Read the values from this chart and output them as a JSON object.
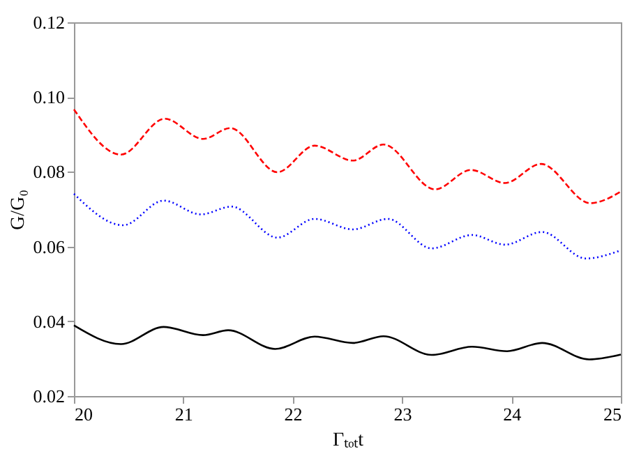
{
  "chart_data": {
    "type": "line",
    "xlabel": "Γₜₒₜt",
    "ylabel": "G/G₀",
    "xlim": [
      20,
      25
    ],
    "xticks": [
      20,
      21,
      22,
      23,
      24,
      25
    ],
    "ylim": [
      0.02,
      0.12
    ],
    "yticks": [
      {
        "value": 0.02,
        "label": "0.02"
      },
      {
        "value": 0.04,
        "label": "0.04"
      },
      {
        "value": 0.06,
        "label": "0.06"
      },
      {
        "value": 0.08,
        "label": "0.08"
      },
      {
        "value": 0.1,
        "label": "0.10"
      },
      {
        "value": 0.12,
        "label": "0.12"
      }
    ],
    "grid": false,
    "marker": "none",
    "series": [
      {
        "color": "#ff0000",
        "line_style": "dashed",
        "x": [
          20,
          20.43,
          20.83,
          21.18,
          21.43,
          21.86,
          22.2,
          22.55,
          22.83,
          23.3,
          23.63,
          23.94,
          24.27,
          24.72,
          25
        ],
        "values": [
          0.0967,
          0.0846,
          0.0942,
          0.0888,
          0.0917,
          0.0799,
          0.087,
          0.083,
          0.0873,
          0.0753,
          0.0805,
          0.077,
          0.0821,
          0.0716,
          0.0747
        ]
      },
      {
        "color": "#0000ff",
        "line_style": "dotted",
        "x": [
          20,
          20.45,
          20.82,
          21.16,
          21.44,
          21.86,
          22.2,
          22.55,
          22.87,
          23.27,
          23.64,
          23.94,
          24.28,
          24.68,
          25
        ],
        "values": [
          0.0741,
          0.0657,
          0.0723,
          0.0686,
          0.0707,
          0.0624,
          0.0674,
          0.0646,
          0.0674,
          0.0595,
          0.0631,
          0.0605,
          0.0639,
          0.0568,
          0.059
        ]
      },
      {
        "color": "#000000",
        "line_style": "solid",
        "x": [
          20,
          20.43,
          20.82,
          21.18,
          21.41,
          21.84,
          22.2,
          22.55,
          22.83,
          23.27,
          23.64,
          23.96,
          24.28,
          24.71,
          25
        ],
        "values": [
          0.0389,
          0.0339,
          0.0385,
          0.0363,
          0.0376,
          0.0326,
          0.0359,
          0.0342,
          0.036,
          0.031,
          0.0332,
          0.032,
          0.0342,
          0.0298,
          0.0311
        ]
      }
    ]
  }
}
